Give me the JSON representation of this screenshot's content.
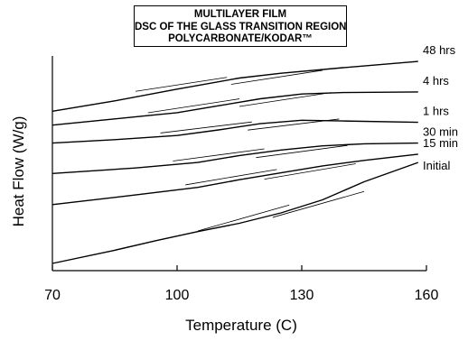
{
  "chart_data": {
    "type": "line",
    "title_lines": [
      "MULTILAYER FILM",
      "DSC OF THE GLASS TRANSITION REGION",
      "POLYCARBONATE/KODAR™"
    ],
    "xlabel": "Temperature (C)",
    "ylabel": "Heat Flow (W/g)",
    "xlim": [
      70,
      160
    ],
    "xticks": [
      "70",
      "100",
      "130",
      "160"
    ],
    "y_axis_ticks_labeled": false,
    "grid": false,
    "legend": "labels at right end of each curve",
    "series": [
      {
        "name": "48 hrs",
        "x": [
          70,
          85,
          100,
          115,
          125,
          140,
          158
        ],
        "y": [
          2.2,
          2.35,
          2.52,
          2.68,
          2.75,
          2.83,
          2.92
        ]
      },
      {
        "name": "4 hrs",
        "x": [
          70,
          85,
          100,
          110,
          120,
          130,
          140,
          158
        ],
        "y": [
          2.0,
          2.09,
          2.18,
          2.28,
          2.38,
          2.45,
          2.47,
          2.48
        ]
      },
      {
        "name": "1 hrs",
        "x": [
          70,
          85,
          100,
          110,
          120,
          130,
          140,
          158
        ],
        "y": [
          1.74,
          1.79,
          1.85,
          1.93,
          2.02,
          2.07,
          2.06,
          2.04
        ]
      },
      {
        "name": "30 min",
        "x": [
          70,
          90,
          105,
          115,
          125,
          135,
          145,
          158
        ],
        "y": [
          1.3,
          1.38,
          1.46,
          1.56,
          1.64,
          1.7,
          1.73,
          1.74
        ]
      },
      {
        "name": "15 min",
        "x": [
          70,
          90,
          105,
          115,
          125,
          135,
          145,
          158
        ],
        "y": [
          0.85,
          0.99,
          1.1,
          1.21,
          1.31,
          1.41,
          1.49,
          1.58
        ]
      },
      {
        "name": "Initial",
        "x": [
          70,
          85,
          95,
          105,
          115,
          125,
          135,
          145,
          158
        ],
        "y": [
          0.0,
          0.19,
          0.33,
          0.46,
          0.58,
          0.73,
          0.92,
          1.18,
          1.46
        ]
      }
    ]
  }
}
